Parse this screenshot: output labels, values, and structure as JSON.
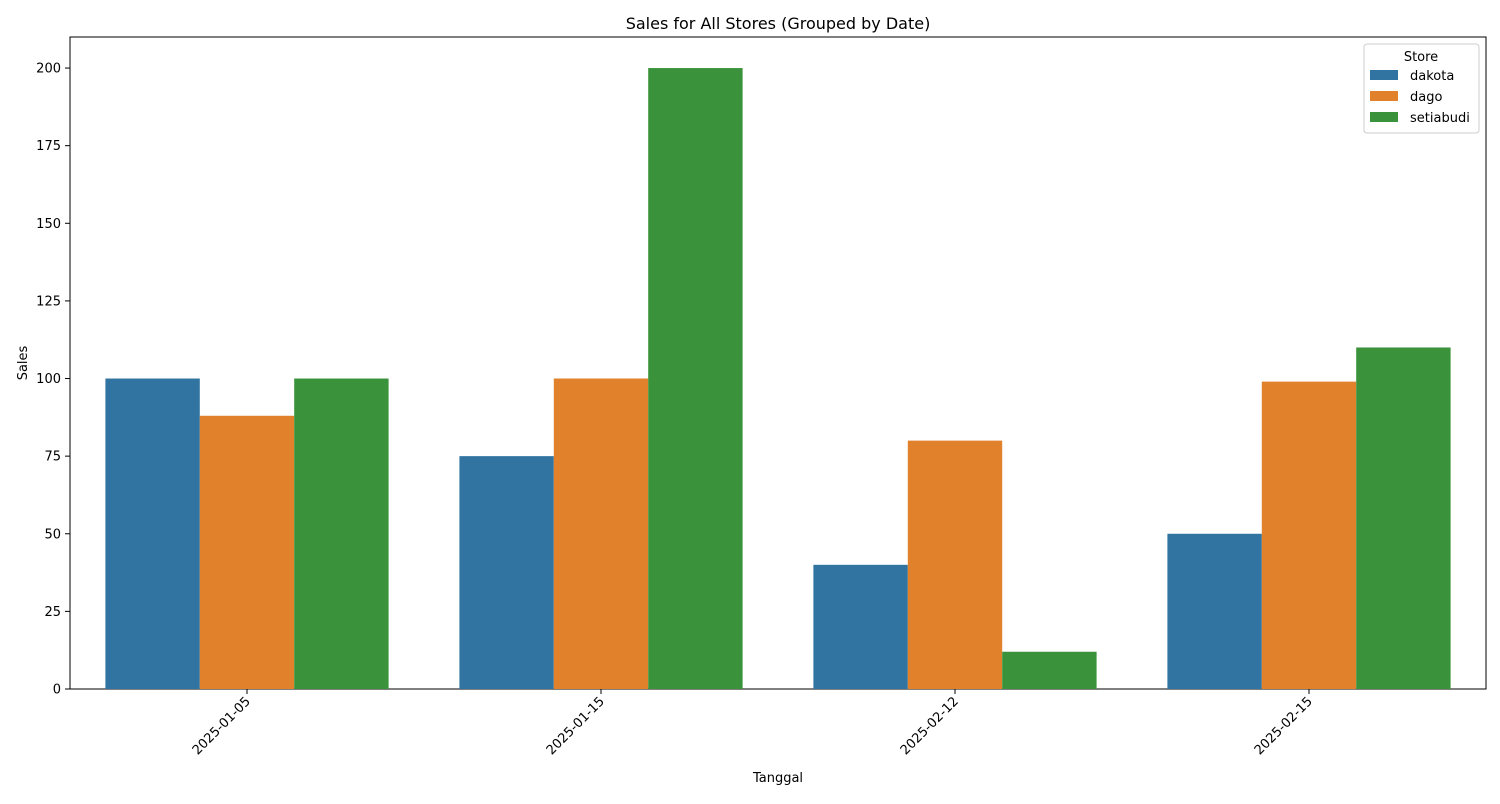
{
  "chart_data": {
    "type": "bar",
    "title": "Sales for All Stores (Grouped by Date)",
    "xlabel": "Tanggal",
    "ylabel": "Sales",
    "categories": [
      "2025-01-05",
      "2025-01-15",
      "2025-02-12",
      "2025-02-15"
    ],
    "series": [
      {
        "name": "dakota",
        "color": "#3274a1",
        "values": [
          100,
          75,
          40,
          50
        ]
      },
      {
        "name": "dago",
        "color": "#e1812c",
        "values": [
          88,
          100,
          80,
          99
        ]
      },
      {
        "name": "setiabudi",
        "color": "#3a923a",
        "values": [
          100,
          200,
          12,
          110
        ]
      }
    ],
    "ylim": [
      0,
      210
    ],
    "yticks": [
      0,
      25,
      50,
      75,
      100,
      125,
      150,
      175,
      200
    ],
    "legend": {
      "title": "Store",
      "position": "top-right"
    },
    "grid": false
  }
}
